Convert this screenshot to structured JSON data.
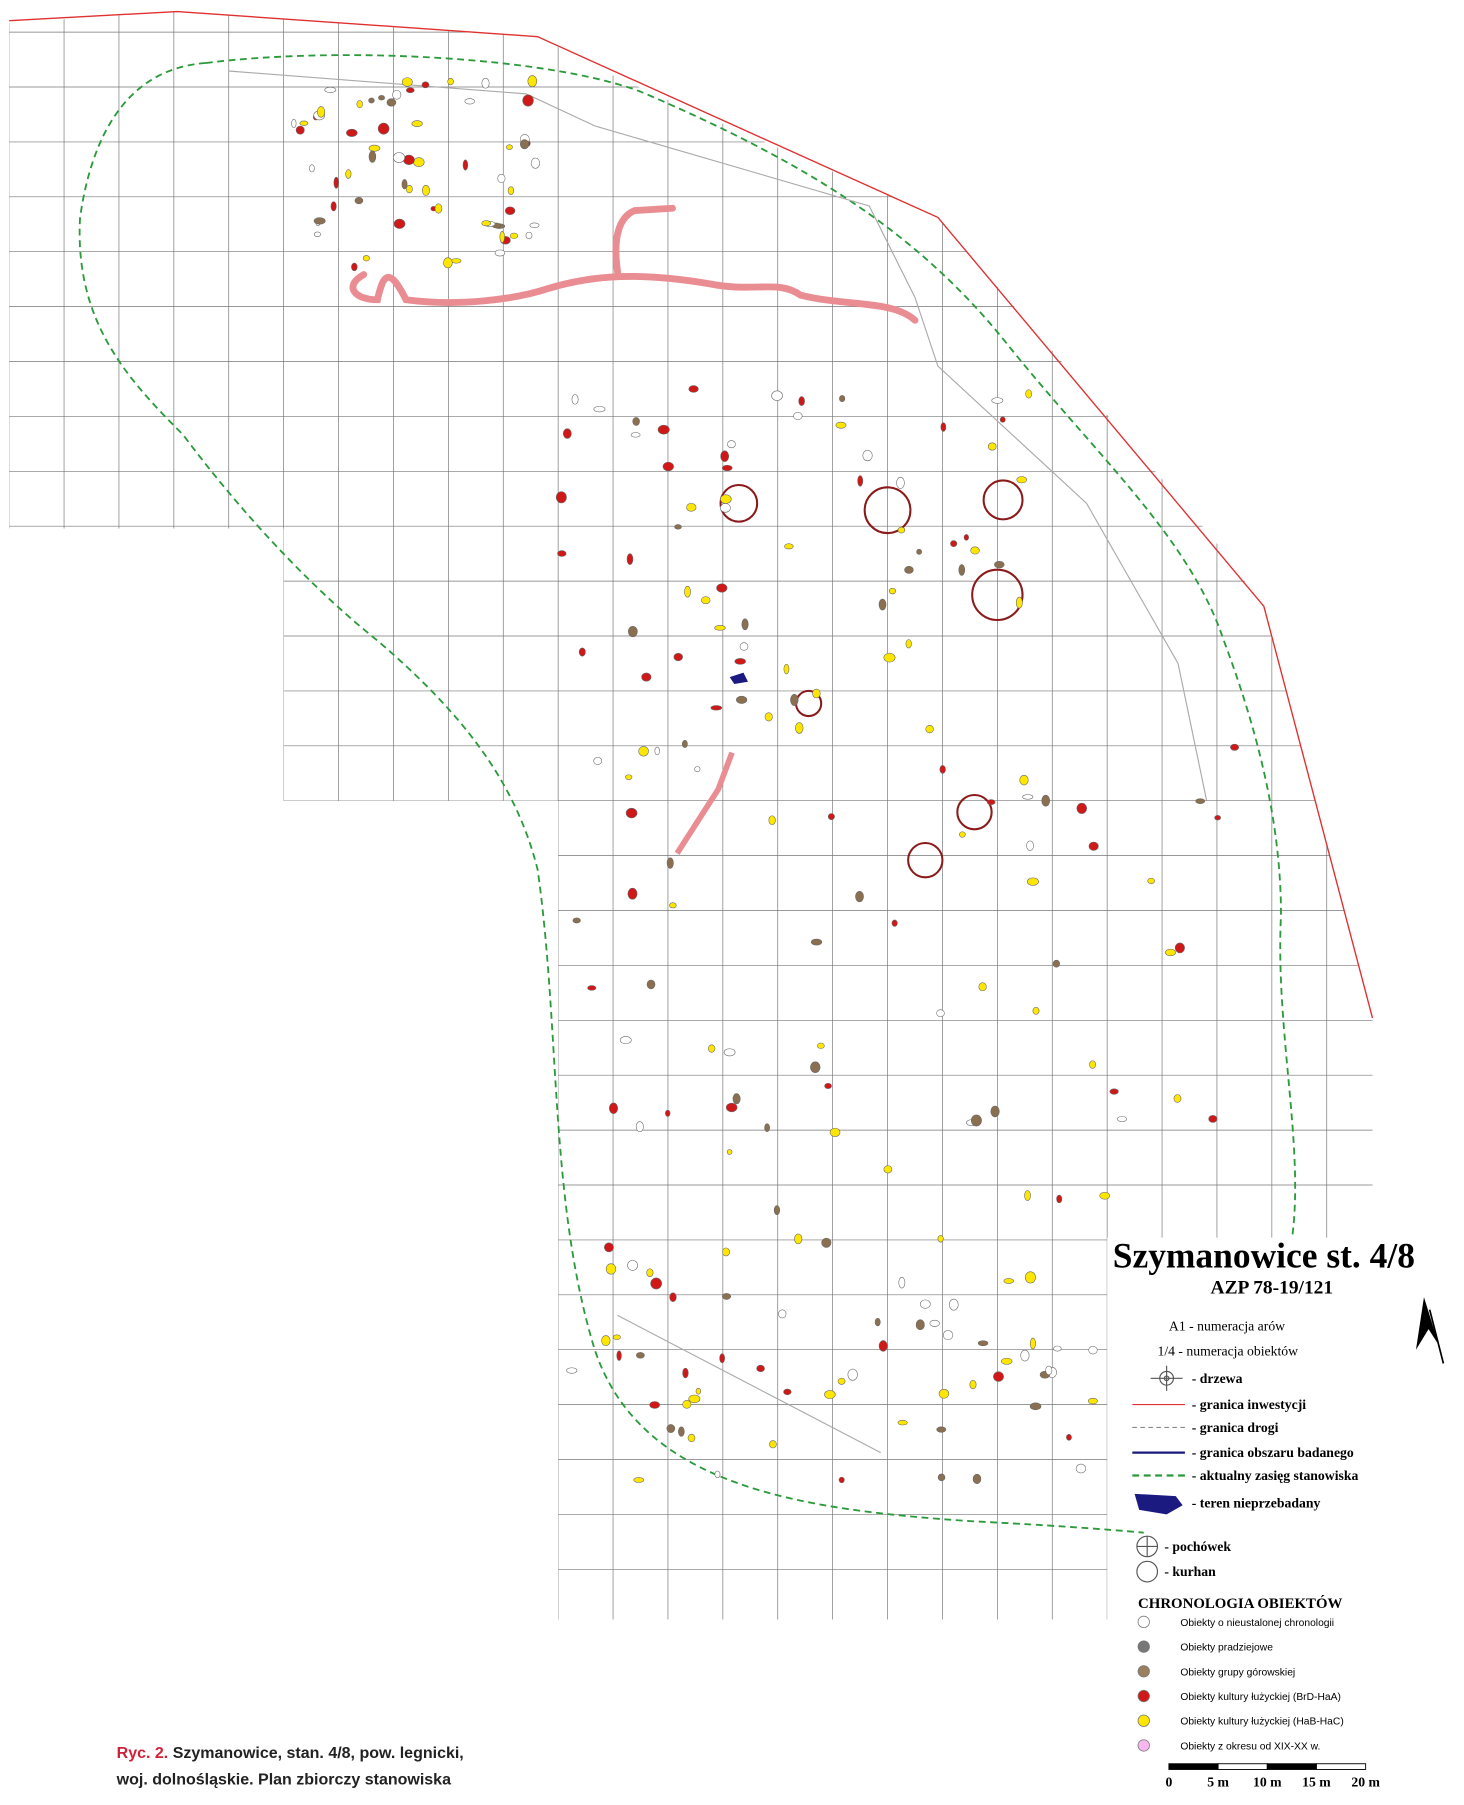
{
  "map": {
    "title": "Szymanowice st. 4/8",
    "subtitle": "AZP 78-19/121",
    "legend": {
      "labels": [
        "A1 - numeracja arów",
        "1/4 - numeracja obiektów"
      ],
      "symbols": [
        "- drzewa",
        "- granica inwestycji",
        "- granica drogi",
        "- granica obszaru badanego",
        "- aktualny zasięg stanowiska",
        "- teren nieprzebadany",
        "- pochówek",
        "- kurhan"
      ],
      "chronology_title": "CHRONOLOGIA OBIEKTÓW",
      "chronology": [
        "Obiekty o nieustalonej chronologii",
        "Obiekty pradziejowe",
        "Obiekty grupy górowskiej",
        "Obiekty kultury łużyckiej (BrD-HaA)",
        "Obiekty kultury łużyckiej (HaB-HaC)",
        "Obiekty z okresu od XIX-XX w."
      ]
    },
    "scale": [
      "0",
      "5 m",
      "10 m",
      "15 m",
      "20 m"
    ]
  },
  "caption": {
    "label": "Ryc. 2.",
    "lines": [
      "Szymanowice, stan. 4/8, pow. legnicki,",
      "woj. dolnośląskie. Plan zbiorczy stanowiska"
    ]
  }
}
